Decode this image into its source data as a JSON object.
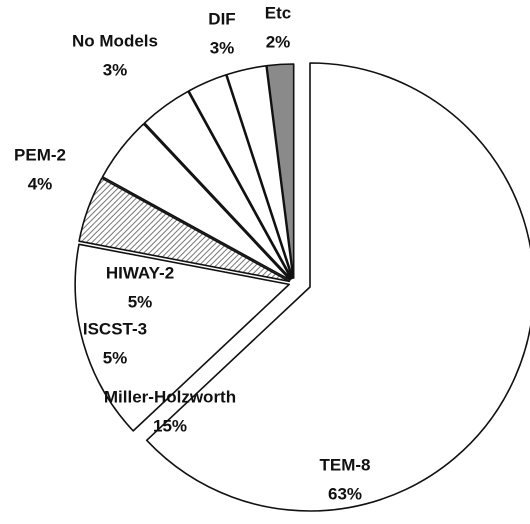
{
  "chart_data": {
    "type": "pie",
    "categories": [
      "TEM-8",
      "Miller-Holzworth",
      "ISCST-3",
      "HIWAY-2",
      "PEM-2",
      "No Models",
      "DIF",
      "Etc"
    ],
    "values": [
      63,
      15,
      5,
      5,
      4,
      3,
      3,
      2
    ],
    "value_labels": [
      "63%",
      "15%",
      "5%",
      "5%",
      "4%",
      "3%",
      "3%",
      "2%"
    ],
    "colors": [
      "#ffffff",
      "#ffffff",
      "#bdbdbd",
      "#ffffff",
      "#ffffff",
      "#ffffff",
      "#ffffff",
      "#8a8a8a"
    ]
  }
}
